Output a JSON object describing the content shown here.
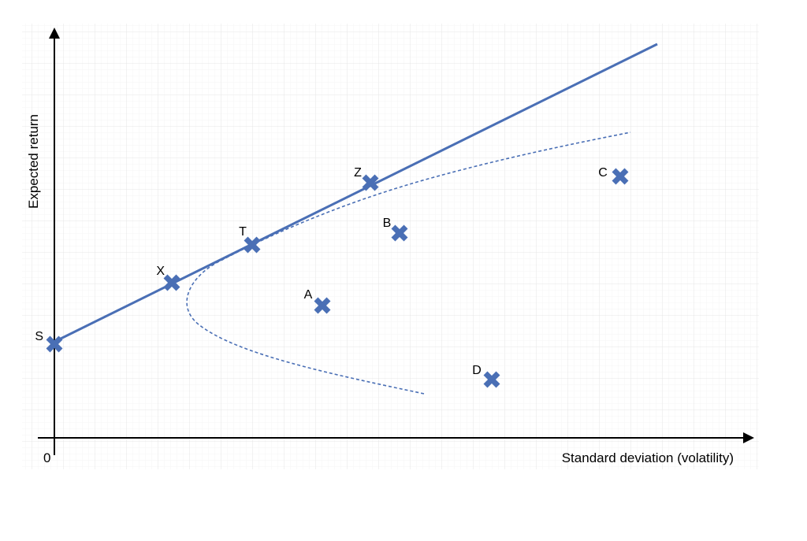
{
  "axes": {
    "x_label": "Standard deviation (volatility)",
    "y_label": "Expected return",
    "origin_label": "0"
  },
  "colors": {
    "series": "#4a6fb5",
    "axis": "#000000",
    "grid": "#ececec"
  },
  "points": [
    {
      "id": "S",
      "label": "S"
    },
    {
      "id": "X",
      "label": "X"
    },
    {
      "id": "T",
      "label": "T"
    },
    {
      "id": "Z",
      "label": "Z"
    },
    {
      "id": "A",
      "label": "A"
    },
    {
      "id": "B",
      "label": "B"
    },
    {
      "id": "C",
      "label": "C"
    },
    {
      "id": "D",
      "label": "D"
    }
  ],
  "lines": {
    "capital_market_line": "solid",
    "efficient_frontier": "dashed"
  }
}
